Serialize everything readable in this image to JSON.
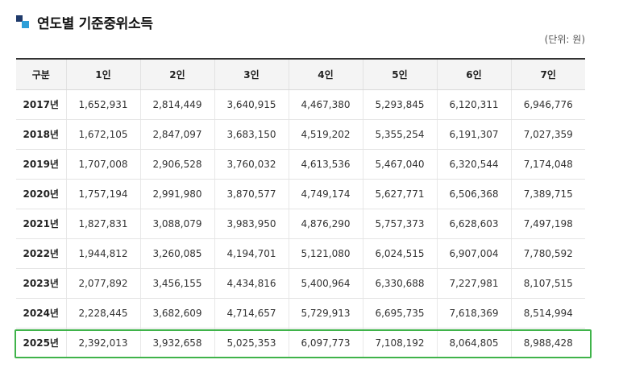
{
  "title": "연도별 기준중위소득",
  "unit": "(단위: 원)",
  "table": {
    "headers": [
      "구분",
      "1인",
      "2인",
      "3인",
      "4인",
      "5인",
      "6인",
      "7인"
    ],
    "rows": [
      [
        "2017년",
        "1,652,931",
        "2,814,449",
        "3,640,915",
        "4,467,380",
        "5,293,845",
        "6,120,311",
        "6,946,776"
      ],
      [
        "2018년",
        "1,672,105",
        "2,847,097",
        "3,683,150",
        "4,519,202",
        "5,355,254",
        "6,191,307",
        "7,027,359"
      ],
      [
        "2019년",
        "1,707,008",
        "2,906,528",
        "3,760,032",
        "4,613,536",
        "5,467,040",
        "6,320,544",
        "7,174,048"
      ],
      [
        "2020년",
        "1,757,194",
        "2,991,980",
        "3,870,577",
        "4,749,174",
        "5,627,771",
        "6,506,368",
        "7,389,715"
      ],
      [
        "2021년",
        "1,827,831",
        "3,088,079",
        "3,983,950",
        "4,876,290",
        "5,757,373",
        "6,628,603",
        "7,497,198"
      ],
      [
        "2022년",
        "1,944,812",
        "3,260,085",
        "4,194,701",
        "5,121,080",
        "6,024,515",
        "6,907,004",
        "7,780,592"
      ],
      [
        "2023년",
        "2,077,892",
        "3,456,155",
        "4,434,816",
        "5,400,964",
        "6,330,688",
        "7,227,981",
        "8,107,515"
      ],
      [
        "2024년",
        "2,228,445",
        "3,682,609",
        "4,714,657",
        "5,729,913",
        "6,695,735",
        "7,618,369",
        "8,514,994"
      ],
      [
        "2025년",
        "2,392,013",
        "3,932,658",
        "5,025,353",
        "6,097,773",
        "7,108,192",
        "8,064,805",
        "8,988,428"
      ]
    ],
    "highlighted_row": "2025년",
    "highlight_color": "#3fb34a"
  },
  "colors": {
    "title_mark_dark": "#1f3a6b",
    "title_mark_light": "#2f9fd8",
    "header_bg": "#f4f4f4"
  }
}
